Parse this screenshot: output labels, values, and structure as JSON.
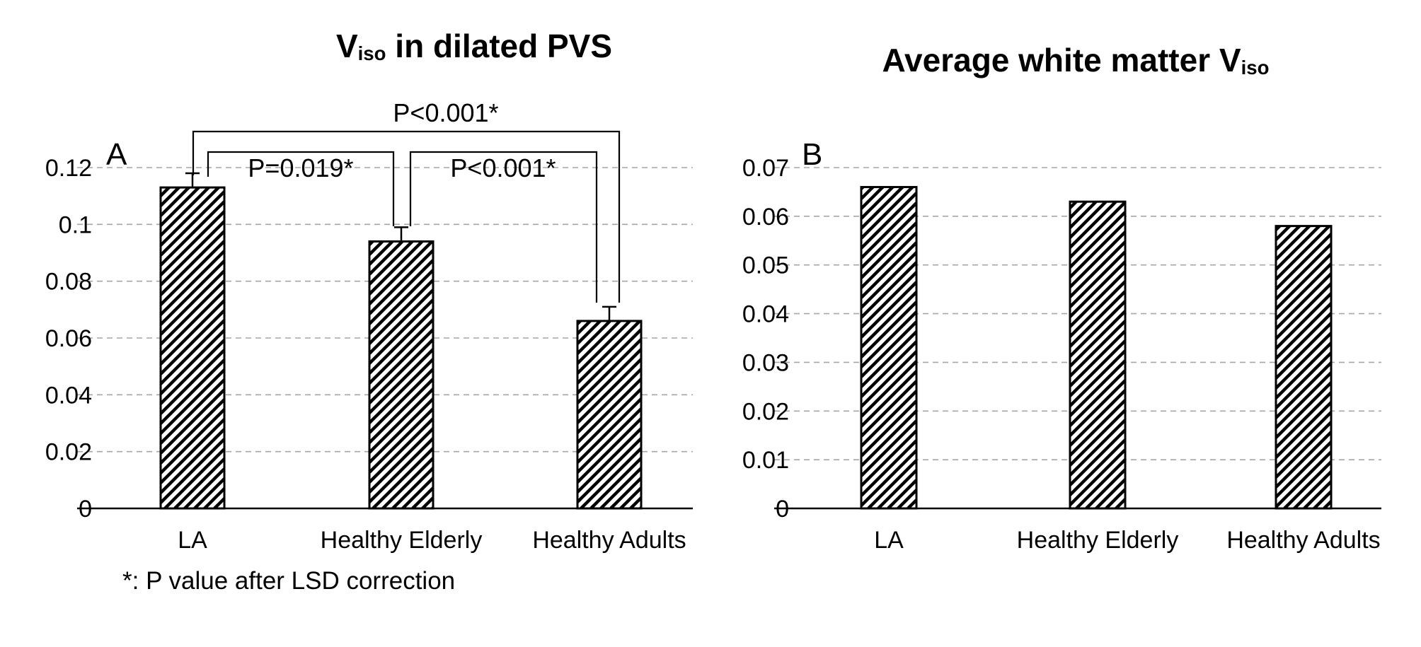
{
  "figure": {
    "background_color": "#ffffff",
    "text_color": "#000000",
    "gridline_color": "#a6a6a6",
    "bar_fill": "diagonal-hatch-black-on-white"
  },
  "chart_data": [
    {
      "type": "bar",
      "panel_label": "A",
      "title": {
        "before": "V",
        "sub": "iso",
        "after": " in dilated PVS"
      },
      "categories": [
        "LA",
        "Healthy Elderly",
        "Healthy Adults"
      ],
      "values": [
        0.113,
        0.094,
        0.066
      ],
      "error_plus": [
        0.005,
        0.005,
        0.005
      ],
      "ylim": [
        0,
        0.12
      ],
      "ytick_values": [
        0,
        0.02,
        0.04,
        0.06,
        0.08,
        0.1,
        0.12
      ],
      "ytick_labels": [
        "0",
        "0.02",
        "0.04",
        "0.06",
        "0.08",
        "0.1",
        "0.12"
      ],
      "grid": "horizontal-dashed",
      "bar_style": "diagonal-hatch",
      "significance_brackets": [
        {
          "between": [
            "LA",
            "Healthy Adults"
          ],
          "label": "P<0.001*"
        },
        {
          "between": [
            "LA",
            "Healthy Elderly"
          ],
          "label": "P=0.019*"
        },
        {
          "between": [
            "Healthy Elderly",
            "Healthy Adults"
          ],
          "label": "P<0.001*"
        }
      ],
      "footnote": "*: P value after LSD correction"
    },
    {
      "type": "bar",
      "panel_label": "B",
      "title": {
        "before": "Average white matter V",
        "sub": "iso",
        "after": ""
      },
      "categories": [
        "LA",
        "Healthy Elderly",
        "Healthy Adults"
      ],
      "values": [
        0.066,
        0.063,
        0.058
      ],
      "ylim": [
        0,
        0.07
      ],
      "ytick_values": [
        0,
        0.01,
        0.02,
        0.03,
        0.04,
        0.05,
        0.06,
        0.07
      ],
      "ytick_labels": [
        "0",
        "0.01",
        "0.02",
        "0.03",
        "0.04",
        "0.05",
        "0.06",
        "0.07"
      ],
      "grid": "horizontal-dashed",
      "bar_style": "diagonal-hatch",
      "significance_brackets": []
    }
  ]
}
